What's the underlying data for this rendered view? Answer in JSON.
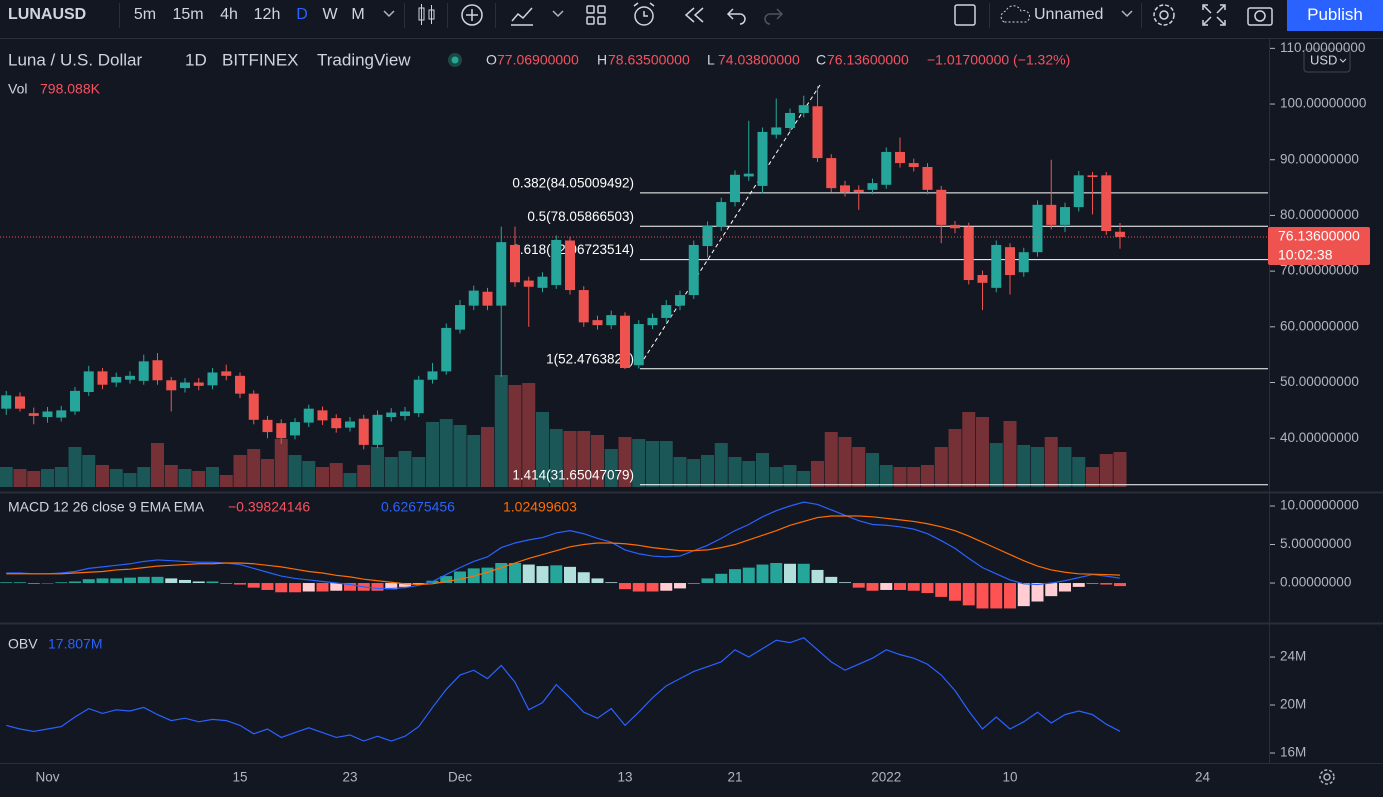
{
  "toolbar": {
    "symbol": "LUNAUSD",
    "intervals": [
      "5m",
      "15m",
      "4h",
      "12h",
      "D",
      "W",
      "M"
    ],
    "active_interval": "D",
    "layout_name": "Unnamed",
    "publish": "Publish"
  },
  "chart_data": [
    {
      "type": "candlestick",
      "title": "Luna / U.S. Dollar",
      "interval": "1D",
      "exchange": "BITFINEX",
      "source": "TradingView",
      "ohlc_legend": [
        {
          "key": "O",
          "value": "77.06900000"
        },
        {
          "key": "H",
          "value": "78.63500000"
        },
        {
          "key": "L",
          "value": "74.03800000"
        },
        {
          "key": "C",
          "value": "76.13600000"
        }
      ],
      "change": "−1.01700000 (−1.32%)",
      "volume_label": "Vol",
      "volume_value": "798.088K",
      "currency": "USD",
      "last_price_label": "76.13600000",
      "countdown": "10:02:38",
      "up_color": "#26a69a",
      "down_color": "#ef5350",
      "categories": [
        null,
        null,
        null,
        "Nov",
        null,
        null,
        null,
        null,
        null,
        null,
        null,
        null,
        null,
        null,
        null,
        null,
        null,
        "15",
        null,
        null,
        null,
        null,
        null,
        null,
        null,
        "23",
        null,
        null,
        null,
        null,
        null,
        null,
        null,
        "Dec",
        null,
        null,
        null,
        null,
        null,
        null,
        null,
        null,
        null,
        null,
        null,
        "13",
        null,
        null,
        null,
        null,
        null,
        null,
        null,
        "21",
        null,
        null,
        null,
        null,
        null,
        null,
        null,
        null,
        null,
        null,
        "2022",
        null,
        null,
        null,
        null,
        null,
        null,
        null,
        null,
        "10",
        null,
        null,
        null,
        null,
        null,
        null,
        null,
        null,
        null,
        null,
        null,
        null,
        null,
        "24"
      ],
      "open": [
        45.3,
        47.5,
        44.5,
        43.8,
        43.7,
        44.8,
        48.3,
        52.0,
        50.0,
        50.5,
        50.3,
        54.0,
        50.4,
        49.0,
        50.0,
        49.5,
        52.0,
        51.2,
        48.0,
        43.3,
        42.7,
        40.5,
        42.8,
        45.0,
        43.6,
        41.9,
        43.5,
        38.8,
        43.8,
        44.0,
        44.5,
        50.5,
        52.0,
        59.5,
        63.8,
        66.3,
        63.8,
        74.7,
        68.3,
        67.0,
        67.5,
        75.5,
        66.6,
        61.2,
        60.3,
        62.0,
        53.1,
        60.3,
        61.6,
        63.8,
        65.7,
        74.5,
        78.0,
        82.4,
        87.0,
        85.3,
        94.5,
        95.7,
        98.4,
        99.6,
        90.3,
        85.4,
        84.6,
        84.6,
        85.5,
        91.4,
        89.4,
        88.7,
        84.6,
        78.3,
        78.0,
        69.3,
        67.0,
        74.3,
        69.8,
        73.4,
        81.9,
        78.3,
        81.5,
        87.2,
        87.2,
        77.069,
        null,
        null,
        null,
        null,
        null,
        null
      ],
      "high": [
        48.5,
        48.2,
        45.5,
        45.6,
        45.8,
        49.2,
        53.0,
        52.6,
        51.8,
        52.0,
        55.0,
        55.3,
        51.0,
        50.8,
        50.8,
        52.6,
        53.2,
        51.8,
        48.6,
        44.0,
        43.4,
        43.6,
        46.0,
        45.7,
        44.3,
        43.8,
        44.2,
        45.0,
        45.4,
        45.6,
        51.2,
        53.5,
        60.6,
        64.8,
        67.4,
        67.0,
        78.0,
        78.0,
        69.0,
        69.8,
        76.4,
        76.2,
        67.3,
        62.0,
        62.9,
        62.6,
        61.2,
        62.4,
        64.8,
        66.5,
        75.5,
        78.9,
        83.2,
        88.1,
        97.0,
        95.8,
        101.0,
        99.2,
        101.5,
        103.2,
        91.0,
        86.2,
        85.4,
        86.6,
        92.2,
        94.0,
        90.2,
        89.4,
        85.3,
        79.0,
        78.7,
        70.1,
        75.5,
        75.0,
        74.2,
        82.7,
        90.0,
        82.3,
        88.0,
        87.8,
        87.8,
        78.635,
        null,
        null,
        null,
        null,
        null,
        null
      ],
      "low": [
        44.2,
        44.8,
        42.5,
        42.8,
        43.0,
        44.2,
        47.6,
        48.8,
        49.2,
        49.8,
        49.6,
        49.6,
        44.8,
        48.2,
        48.6,
        48.8,
        50.4,
        47.2,
        42.5,
        40.0,
        39.0,
        39.8,
        42.0,
        42.4,
        41.0,
        41.2,
        38.0,
        38.2,
        43.0,
        43.2,
        43.8,
        49.8,
        51.4,
        58.8,
        63.0,
        63.0,
        51.0,
        67.2,
        60.0,
        66.2,
        66.8,
        65.8,
        60.0,
        59.5,
        59.6,
        52.4,
        52.5,
        59.6,
        60.8,
        63.0,
        65.0,
        72.5,
        77.2,
        81.6,
        86.2,
        84.0,
        93.8,
        95.0,
        97.6,
        89.6,
        84.2,
        83.4,
        81.0,
        83.8,
        84.8,
        88.6,
        87.9,
        83.8,
        75.0,
        76.8,
        67.6,
        63.0,
        66.2,
        65.8,
        69.0,
        72.6,
        77.5,
        77.0,
        80.7,
        80.2,
        76.5,
        74.038,
        null,
        null,
        null,
        null,
        null,
        null
      ],
      "close": [
        47.7,
        45.3,
        44.0,
        44.8,
        45.0,
        48.5,
        52.0,
        49.6,
        51.0,
        51.2,
        53.8,
        50.4,
        48.6,
        50.0,
        49.4,
        51.8,
        51.2,
        48.0,
        43.3,
        41.1,
        40.0,
        42.9,
        45.3,
        43.2,
        41.8,
        43.0,
        38.8,
        44.2,
        44.6,
        44.8,
        50.5,
        52.0,
        59.8,
        63.9,
        66.5,
        63.8,
        75.2,
        68.0,
        67.2,
        69.0,
        75.6,
        66.6,
        60.8,
        60.3,
        62.1,
        52.6,
        60.5,
        61.6,
        63.9,
        65.7,
        74.7,
        78.1,
        82.4,
        87.3,
        87.5,
        95.0,
        95.8,
        98.4,
        99.8,
        90.3,
        84.9,
        84.2,
        84.2,
        85.8,
        91.4,
        89.4,
        88.7,
        84.6,
        78.3,
        77.7,
        68.4,
        67.9,
        74.7,
        69.3,
        73.4,
        81.9,
        78.3,
        81.5,
        87.2,
        86.9,
        77.2,
        76.136,
        null,
        null,
        null,
        null,
        null,
        null
      ],
      "volume": [
        456,
        410,
        365,
        410,
        456,
        912,
        730,
        502,
        410,
        319,
        456,
        1003,
        502,
        410,
        365,
        456,
        274,
        730,
        866,
        638,
        1094,
        730,
        593,
        456,
        547,
        319,
        502,
        912,
        684,
        821,
        684,
        1482,
        1550,
        1414,
        1186,
        1368,
        2554,
        2326,
        2371,
        1710,
        1322,
        1277,
        1277,
        1186,
        866,
        1140,
        1094,
        1049,
        1049,
        684,
        638,
        730,
        1003,
        684,
        593,
        775,
        456,
        502,
        365,
        593,
        1254,
        1140,
        912,
        775,
        502,
        456,
        456,
        502,
        912,
        1322,
        1710,
        1596,
        1003,
        1505,
        958,
        912,
        1140,
        912,
        684,
        456,
        752,
        798.088,
        null,
        null,
        null,
        null,
        null,
        null
      ],
      "ylim": [
        30.7,
        111.5
      ],
      "yticks": [
        {
          "value": 110,
          "label": "110.00000000"
        },
        {
          "value": 100,
          "label": "100.00000000"
        },
        {
          "value": 90,
          "label": "90.00000000"
        },
        {
          "value": 80,
          "label": "80.00000000"
        },
        {
          "value": 70,
          "label": "70.00000000"
        },
        {
          "value": 60,
          "label": "60.00000000"
        },
        {
          "value": 50,
          "label": "50.00000000"
        },
        {
          "value": 40,
          "label": "40.00000000"
        }
      ],
      "fib_levels": [
        {
          "value": 84.05009492,
          "label": "0.382(84.05009492)"
        },
        {
          "value": 78.05866503,
          "label": "0.5(78.05866503)"
        },
        {
          "value": 72.06723514,
          "label": "0.618(72.06723514)"
        },
        {
          "value": 52.4763828,
          "label": "1(52.4763828)"
        },
        {
          "value": 31.65047079,
          "label": "1.414(31.65047079)"
        }
      ]
    },
    {
      "type": "macd",
      "label": "MACD 12 26 close 9 EMA EMA",
      "legend_values": [
        {
          "value": "−0.39824146",
          "color": "#f7525f"
        },
        {
          "value": "0.62675456",
          "color": "#2962ff"
        },
        {
          "value": "1.02499603",
          "color": "#ff6d00"
        }
      ],
      "macd_color": "#2962ff",
      "signal_color": "#ff6d00",
      "macd": [
        1.3,
        1.3,
        1.2,
        1.2,
        1.3,
        1.5,
        1.9,
        2.1,
        2.3,
        2.5,
        2.8,
        3.0,
        2.9,
        2.8,
        2.7,
        2.7,
        2.6,
        2.4,
        1.9,
        1.4,
        0.9,
        0.6,
        0.4,
        0.2,
        0.0,
        -0.2,
        -0.5,
        -0.7,
        -0.7,
        -0.6,
        -0.3,
        0.2,
        1.1,
        2.0,
        2.8,
        3.4,
        4.6,
        5.2,
        5.6,
        5.9,
        6.5,
        6.8,
        6.4,
        5.8,
        5.3,
        4.3,
        3.8,
        3.5,
        3.4,
        3.5,
        4.2,
        4.9,
        5.8,
        6.8,
        7.6,
        8.6,
        9.4,
        10.0,
        10.5,
        10.2,
        9.5,
        8.8,
        8.1,
        7.6,
        7.5,
        7.3,
        7.0,
        6.4,
        5.5,
        4.5,
        3.2,
        2.0,
        1.2,
        0.4,
        -0.1,
        -0.2,
        0.0,
        0.3,
        0.7,
        1.1,
        0.9,
        0.62675456,
        null,
        null,
        null,
        null,
        null,
        null
      ],
      "signal": [
        1.2,
        1.2,
        1.2,
        1.2,
        1.2,
        1.3,
        1.4,
        1.5,
        1.7,
        1.8,
        2.0,
        2.2,
        2.3,
        2.4,
        2.5,
        2.5,
        2.6,
        2.6,
        2.5,
        2.3,
        2.1,
        1.8,
        1.5,
        1.3,
        1.0,
        0.8,
        0.5,
        0.3,
        0.1,
        -0.1,
        -0.2,
        -0.1,
        0.2,
        0.5,
        0.9,
        1.4,
        2.0,
        2.6,
        3.2,
        3.7,
        4.2,
        4.7,
        5.0,
        5.2,
        5.2,
        5.1,
        4.9,
        4.6,
        4.4,
        4.2,
        4.2,
        4.3,
        4.6,
        5.0,
        5.6,
        6.2,
        6.8,
        7.5,
        8.0,
        8.5,
        8.7,
        8.7,
        8.7,
        8.6,
        8.4,
        8.2,
        8.0,
        7.7,
        7.3,
        6.8,
        6.1,
        5.3,
        4.5,
        3.7,
        2.9,
        2.2,
        1.7,
        1.4,
        1.2,
        1.15,
        1.1,
        1.02499603,
        null,
        null,
        null,
        null,
        null,
        null
      ],
      "histogram": [
        0.1,
        0.1,
        0,
        0,
        0.1,
        0.2,
        0.5,
        0.6,
        0.6,
        0.7,
        0.8,
        0.8,
        0.6,
        0.4,
        0.2,
        0.2,
        0,
        -0.2,
        -0.6,
        -0.9,
        -1.2,
        -1.2,
        -1.1,
        -1.1,
        -1.0,
        -1.0,
        -1.0,
        -1.0,
        -0.8,
        -0.5,
        -0.1,
        0.3,
        0.9,
        1.5,
        1.9,
        2.0,
        2.6,
        2.6,
        2.4,
        2.2,
        2.3,
        2.1,
        1.4,
        0.6,
        0.1,
        -0.8,
        -1.1,
        -1.1,
        -1.0,
        -0.7,
        0,
        0.6,
        1.2,
        1.8,
        2.0,
        2.4,
        2.6,
        2.5,
        2.5,
        1.7,
        0.8,
        0.1,
        -0.6,
        -1.0,
        -0.9,
        -0.9,
        -1.0,
        -1.3,
        -1.8,
        -2.3,
        -2.9,
        -3.3,
        -3.3,
        -3.3,
        -3.0,
        -2.4,
        -1.7,
        -1.1,
        -0.5,
        -0.05,
        -0.2,
        -0.39824146,
        null,
        null,
        null,
        null,
        null,
        null
      ],
      "ylim": [
        -5.06,
        11.56
      ],
      "yticks": [
        {
          "value": 10,
          "label": "10.00000000"
        },
        {
          "value": 5,
          "label": "5.00000000"
        },
        {
          "value": 0,
          "label": "0.00000000"
        }
      ]
    },
    {
      "type": "line",
      "label": "OBV",
      "legend_value": "17.807M",
      "color": "#2962ff",
      "values": [
        18.3,
        18.0,
        17.8,
        18.0,
        18.2,
        19.0,
        19.7,
        19.3,
        19.6,
        19.5,
        19.8,
        19.2,
        18.7,
        18.9,
        18.6,
        18.8,
        18.7,
        18.3,
        17.6,
        18.0,
        17.3,
        17.7,
        18.1,
        17.7,
        17.3,
        17.5,
        17.0,
        17.4,
        17.0,
        17.4,
        18.2,
        19.8,
        21.3,
        22.5,
        22.9,
        22.2,
        23.3,
        21.9,
        19.6,
        20.2,
        21.7,
        20.6,
        19.4,
        18.9,
        19.7,
        18.3,
        19.4,
        20.6,
        21.6,
        22.2,
        22.8,
        23.2,
        23.6,
        24.6,
        24.0,
        24.7,
        25.4,
        25.2,
        25.6,
        24.6,
        23.6,
        22.9,
        23.4,
        23.9,
        24.6,
        24.2,
        23.9,
        23.4,
        22.5,
        21.2,
        19.5,
        18.0,
        19.0,
        18.0,
        18.6,
        19.4,
        18.5,
        19.2,
        19.5,
        19.2,
        18.4,
        17.807,
        null,
        null,
        null,
        null,
        null,
        null
      ],
      "ylim": [
        15.25,
        26.67
      ],
      "yticks": [
        {
          "value": 24,
          "label": "24M"
        },
        {
          "value": 20,
          "label": "20M"
        },
        {
          "value": 16,
          "label": "16M"
        }
      ]
    }
  ]
}
